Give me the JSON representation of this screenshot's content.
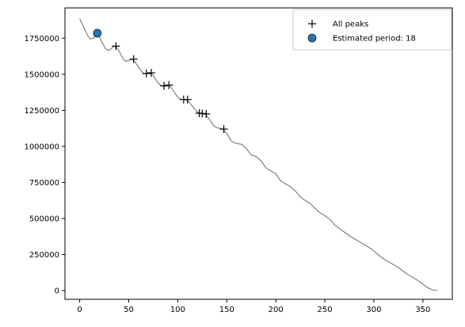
{
  "chart_data": {
    "type": "line",
    "title": "",
    "xlabel": "",
    "ylabel": "",
    "xlim": [
      -15,
      380
    ],
    "ylim": [
      -60000,
      1960000
    ],
    "xticks": [
      0,
      50,
      100,
      150,
      200,
      250,
      300,
      350
    ],
    "yticks": [
      0,
      250000,
      500000,
      750000,
      1000000,
      1250000,
      1500000,
      1750000
    ],
    "grid": false,
    "legend_position": "top-right",
    "line_color": "#808080",
    "series": [
      {
        "type": "line",
        "x": [
          0,
          4,
          8,
          11,
          14,
          17,
          20,
          23,
          26,
          29,
          32,
          35,
          38,
          41,
          44,
          47,
          50,
          53,
          56,
          59,
          62,
          65,
          68,
          71,
          74,
          77,
          80,
          83,
          86,
          89,
          92,
          95,
          98,
          101,
          104,
          107,
          110,
          113,
          116,
          119,
          122,
          125,
          128,
          131,
          134,
          137,
          140,
          143,
          146,
          150,
          155,
          160,
          165,
          170,
          175,
          180,
          185,
          190,
          195,
          200,
          205,
          210,
          215,
          220,
          225,
          230,
          235,
          240,
          245,
          250,
          255,
          260,
          265,
          270,
          275,
          280,
          285,
          290,
          295,
          300,
          305,
          310,
          315,
          320,
          325,
          330,
          335,
          340,
          345,
          350,
          355,
          360,
          365
        ],
        "y": [
          1885000,
          1830000,
          1770000,
          1745000,
          1750000,
          1775000,
          1760000,
          1720000,
          1680000,
          1665000,
          1675000,
          1695000,
          1685000,
          1650000,
          1610000,
          1590000,
          1595000,
          1605000,
          1590000,
          1560000,
          1530000,
          1505000,
          1505000,
          1510000,
          1500000,
          1470000,
          1440000,
          1420000,
          1415000,
          1425000,
          1420000,
          1390000,
          1360000,
          1335000,
          1325000,
          1325000,
          1320000,
          1295000,
          1270000,
          1245000,
          1230000,
          1228000,
          1225000,
          1200000,
          1170000,
          1140000,
          1130000,
          1125000,
          1120000,
          1090000,
          1035000,
          1020000,
          1015000,
          985000,
          940000,
          930000,
          900000,
          850000,
          830000,
          810000,
          760000,
          740000,
          720000,
          690000,
          650000,
          625000,
          605000,
          570000,
          540000,
          520000,
          495000,
          455000,
          430000,
          405000,
          380000,
          360000,
          340000,
          320000,
          300000,
          275000,
          245000,
          220000,
          200000,
          180000,
          160000,
          135000,
          110000,
          90000,
          70000,
          45000,
          20000,
          5000,
          0
        ]
      },
      {
        "name": "All peaks",
        "type": "scatter",
        "marker": "plus",
        "color": "#000000",
        "x": [
          37,
          55,
          68,
          73,
          86,
          91,
          106,
          110,
          122,
          125,
          129,
          147
        ],
        "y": [
          1695000,
          1605000,
          1505000,
          1510000,
          1420000,
          1425000,
          1325000,
          1325000,
          1230000,
          1228000,
          1225000,
          1120000
        ]
      },
      {
        "name": "Estimated period: 18",
        "type": "scatter",
        "marker": "circle",
        "color": "#1f77b4",
        "x": [
          18
        ],
        "y": [
          1785000
        ]
      }
    ]
  }
}
